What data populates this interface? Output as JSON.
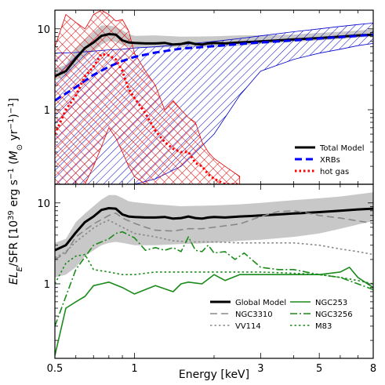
{
  "chart_data": [
    {
      "type": "line",
      "panel": "top",
      "x_scale": "log",
      "y_scale": "log",
      "xlim": [
        0.5,
        8
      ],
      "ylim": [
        0.12,
        17
      ],
      "yticks": [
        {
          "value": 1,
          "label": "1"
        },
        {
          "value": 10,
          "label": "10"
        }
      ],
      "series": [
        {
          "name": "Total Model",
          "style": "solid",
          "color": "#000000",
          "width": 3,
          "x": [
            0.5,
            0.55,
            0.6,
            0.65,
            0.7,
            0.75,
            0.8,
            0.85,
            0.9,
            0.95,
            1.0,
            1.1,
            1.2,
            1.3,
            1.4,
            1.5,
            1.6,
            1.7,
            1.8,
            1.9,
            2.0,
            2.2,
            2.5,
            2.8,
            3.0,
            3.5,
            4.0,
            5.0,
            6.0,
            7.0,
            8.0
          ],
          "y": [
            2.6,
            3.0,
            4.3,
            5.8,
            6.8,
            8.2,
            8.6,
            8.5,
            7.2,
            6.8,
            6.7,
            6.6,
            6.6,
            6.7,
            6.4,
            6.5,
            6.8,
            6.5,
            6.4,
            6.6,
            6.7,
            6.6,
            6.8,
            6.9,
            7.0,
            7.2,
            7.4,
            7.7,
            8.0,
            8.3,
            8.5
          ]
        },
        {
          "name": "XRBs",
          "style": "dashed",
          "color": "#0000ff",
          "width": 3,
          "x": [
            0.5,
            0.6,
            0.7,
            0.8,
            0.9,
            1.0,
            1.2,
            1.5,
            2.0,
            2.5,
            3.0,
            4.0,
            5.0,
            6.0,
            7.0,
            8.0
          ],
          "y": [
            1.3,
            1.9,
            2.7,
            3.4,
            4.0,
            4.5,
            5.1,
            5.7,
            6.1,
            6.5,
            6.8,
            7.2,
            7.6,
            7.9,
            8.2,
            8.5
          ]
        },
        {
          "name": "hot gas",
          "style": "dotted",
          "color": "#ff0000",
          "width": 3,
          "x": [
            0.5,
            0.55,
            0.6,
            0.65,
            0.7,
            0.75,
            0.8,
            0.85,
            0.9,
            0.95,
            1.0,
            1.1,
            1.2,
            1.3,
            1.4,
            1.5,
            1.6,
            1.7,
            1.8,
            1.9,
            2.0,
            2.2,
            2.5
          ],
          "y": [
            0.5,
            1.0,
            1.5,
            2.6,
            3.4,
            4.9,
            4.7,
            4.2,
            3.0,
            1.8,
            1.4,
            0.9,
            0.55,
            0.4,
            0.33,
            0.3,
            0.3,
            0.22,
            0.2,
            0.16,
            0.14,
            0.12,
            0.12
          ]
        }
      ],
      "bands": [
        {
          "name": "Total Model band",
          "color": "#c8c8c8",
          "x": [
            0.5,
            0.55,
            0.6,
            0.65,
            0.7,
            0.75,
            0.8,
            0.85,
            0.9,
            0.95,
            1.0,
            1.2,
            1.5,
            2.0,
            2.5,
            3.0,
            4.0,
            5.0,
            6.0,
            7.0,
            8.0
          ],
          "low": [
            2.3,
            2.6,
            3.6,
            4.6,
            5.3,
            6.4,
            7.1,
            6.9,
            6.3,
            6.0,
            5.9,
            5.9,
            5.9,
            6.0,
            6.2,
            6.5,
            6.9,
            7.2,
            7.5,
            7.8,
            8.0
          ],
          "high": [
            3.2,
            3.6,
            5.8,
            7.4,
            9.1,
            11.0,
            11.0,
            10.6,
            9.6,
            8.6,
            8.2,
            8.3,
            8.0,
            8.1,
            8.3,
            8.3,
            8.5,
            8.9,
            9.2,
            9.5,
            9.9
          ]
        },
        {
          "name": "XRBs band",
          "color": "#0000cc",
          "x": [
            0.5,
            0.6,
            0.7,
            0.8,
            0.9,
            1.0,
            1.2,
            1.5,
            2.0,
            2.5,
            3.0,
            4.0,
            5.0,
            6.0,
            7.0,
            8.0
          ],
          "low": [
            0.12,
            0.12,
            0.12,
            0.12,
            0.12,
            0.12,
            0.14,
            0.2,
            0.5,
            1.5,
            3.0,
            4.2,
            5.0,
            5.6,
            6.2,
            6.6
          ],
          "high": [
            5.0,
            5.1,
            5.3,
            5.5,
            5.6,
            5.8,
            6.0,
            6.4,
            7.0,
            7.6,
            8.2,
            9.2,
            10.0,
            10.7,
            11.3,
            11.8
          ]
        },
        {
          "name": "hot gas band",
          "color": "#e60000",
          "x": [
            0.5,
            0.55,
            0.6,
            0.65,
            0.7,
            0.75,
            0.8,
            0.85,
            0.9,
            0.95,
            1.0,
            1.1,
            1.2,
            1.3,
            1.4,
            1.5,
            1.6,
            1.7,
            1.8,
            1.9,
            2.0,
            2.2,
            2.5
          ],
          "low": [
            0.12,
            0.12,
            0.12,
            0.12,
            0.2,
            0.35,
            0.6,
            0.45,
            0.3,
            0.2,
            0.15,
            0.12,
            0.12,
            0.12,
            0.12,
            0.12,
            0.12,
            0.12,
            0.12,
            0.12,
            0.12,
            0.12,
            0.12
          ],
          "high": [
            6.0,
            15.0,
            12.0,
            10.0,
            15.0,
            17.0,
            15.0,
            12.5,
            13.0,
            9.5,
            5.0,
            3.0,
            2.0,
            1.0,
            1.3,
            1.0,
            0.8,
            0.7,
            0.4,
            0.3,
            0.25,
            0.2,
            0.15
          ]
        }
      ],
      "legend": {
        "placement": "lower-right",
        "entries": [
          "Total Model",
          "XRBs",
          "hot gas"
        ]
      }
    },
    {
      "type": "line",
      "panel": "bottom",
      "x_scale": "log",
      "y_scale": "log",
      "xlim": [
        0.5,
        8
      ],
      "ylim": [
        0.12,
        17
      ],
      "xlabel": "Energy [keV]",
      "xticks": [
        {
          "value": 0.5,
          "label": "0.5"
        },
        {
          "value": 1,
          "label": "1"
        },
        {
          "value": 3,
          "label": "3"
        },
        {
          "value": 5,
          "label": "5"
        },
        {
          "value": 8,
          "label": "8"
        }
      ],
      "yticks": [
        {
          "value": 1,
          "label": "1"
        },
        {
          "value": 10,
          "label": "10"
        }
      ],
      "series": [
        {
          "name": "Global Model",
          "style": "solid",
          "color": "#000000",
          "width": 3,
          "x": [
            0.5,
            0.55,
            0.6,
            0.65,
            0.7,
            0.75,
            0.8,
            0.85,
            0.9,
            0.95,
            1.0,
            1.1,
            1.2,
            1.3,
            1.4,
            1.5,
            1.6,
            1.7,
            1.8,
            1.9,
            2.0,
            2.2,
            2.5,
            2.8,
            3.0,
            3.5,
            4.0,
            5.0,
            6.0,
            7.0,
            8.0
          ],
          "y": [
            2.6,
            3.0,
            4.3,
            5.8,
            6.8,
            8.2,
            8.6,
            8.5,
            7.2,
            6.8,
            6.7,
            6.6,
            6.6,
            6.7,
            6.4,
            6.5,
            6.8,
            6.5,
            6.4,
            6.6,
            6.7,
            6.6,
            6.8,
            6.9,
            7.0,
            7.2,
            7.4,
            7.7,
            8.0,
            8.3,
            8.5
          ]
        },
        {
          "name": "NGC3310",
          "style": "dashed",
          "color": "#888888",
          "width": 1.6,
          "x": [
            0.5,
            0.55,
            0.6,
            0.7,
            0.8,
            0.85,
            0.9,
            1.0,
            1.1,
            1.2,
            1.4,
            1.6,
            1.8,
            2.0,
            2.5,
            3.0,
            3.5,
            4.0,
            4.5,
            5.0,
            6.0,
            7.0,
            8.0
          ],
          "y": [
            2.0,
            2.4,
            3.8,
            5.5,
            7.0,
            7.5,
            6.5,
            5.6,
            5.0,
            4.6,
            4.5,
            4.8,
            4.8,
            5.0,
            5.5,
            6.8,
            7.8,
            8.0,
            7.5,
            7.0,
            6.5,
            6.0,
            5.6
          ]
        },
        {
          "name": "VV114",
          "style": "dotted",
          "color": "#888888",
          "width": 1.6,
          "x": [
            0.5,
            0.55,
            0.6,
            0.7,
            0.75,
            0.8,
            0.9,
            1.0,
            1.2,
            1.4,
            1.6,
            2.0,
            2.5,
            3.0,
            4.0,
            5.0,
            6.0,
            7.0,
            8.0
          ],
          "y": [
            2.1,
            2.5,
            3.3,
            4.9,
            5.6,
            6.1,
            5.0,
            4.2,
            3.8,
            3.4,
            3.3,
            3.3,
            3.2,
            3.2,
            3.2,
            3.0,
            2.7,
            2.5,
            2.3
          ]
        },
        {
          "name": "NGC253",
          "style": "solid",
          "color": "#1a8a1a",
          "width": 1.6,
          "x": [
            0.5,
            0.55,
            0.6,
            0.65,
            0.7,
            0.75,
            0.8,
            0.9,
            1.0,
            1.1,
            1.2,
            1.4,
            1.5,
            1.6,
            1.8,
            2.0,
            2.2,
            2.5,
            3.0,
            4.0,
            5.0,
            6.0,
            6.5,
            7.0,
            8.0
          ],
          "y": [
            0.13,
            0.5,
            0.6,
            0.7,
            0.95,
            1.0,
            1.05,
            0.9,
            0.75,
            0.85,
            0.95,
            0.8,
            1.0,
            1.05,
            1.0,
            1.3,
            1.1,
            1.3,
            1.3,
            1.3,
            1.3,
            1.4,
            1.6,
            1.2,
            0.9
          ]
        },
        {
          "name": "NGC3256",
          "style": "dashdot",
          "color": "#1a8a1a",
          "width": 1.6,
          "x": [
            0.5,
            0.55,
            0.6,
            0.7,
            0.8,
            0.85,
            0.9,
            1.0,
            1.1,
            1.2,
            1.3,
            1.4,
            1.5,
            1.6,
            1.7,
            1.8,
            1.9,
            2.0,
            2.2,
            2.4,
            2.6,
            3.0,
            3.5,
            4.0,
            5.0,
            6.0,
            7.0,
            8.0
          ],
          "y": [
            0.3,
            0.7,
            1.5,
            3.0,
            3.6,
            4.2,
            4.4,
            3.7,
            2.6,
            2.8,
            2.6,
            2.8,
            2.5,
            3.8,
            2.6,
            2.5,
            3.0,
            2.4,
            2.5,
            2.0,
            2.4,
            1.6,
            1.5,
            1.5,
            1.3,
            1.2,
            1.0,
            0.85
          ]
        },
        {
          "name": "M83",
          "style": "dotted",
          "color": "#1a8a1a",
          "width": 1.6,
          "x": [
            0.5,
            0.55,
            0.6,
            0.65,
            0.7,
            0.8,
            0.9,
            1.0,
            1.2,
            1.5,
            2.0,
            2.5,
            3.0,
            4.0,
            5.0,
            6.0,
            7.0,
            8.0
          ],
          "y": [
            1.0,
            1.8,
            2.2,
            2.3,
            1.5,
            1.4,
            1.3,
            1.3,
            1.4,
            1.4,
            1.4,
            1.4,
            1.4,
            1.35,
            1.3,
            1.2,
            1.1,
            1.0
          ]
        }
      ],
      "bands": [
        {
          "name": "Global Model band",
          "color": "#c8c8c8",
          "x": [
            0.5,
            0.55,
            0.6,
            0.65,
            0.7,
            0.75,
            0.8,
            0.85,
            0.9,
            0.95,
            1.0,
            1.2,
            1.5,
            2.0,
            2.5,
            3.0,
            4.0,
            5.0,
            6.0,
            7.0,
            8.0
          ],
          "low": [
            1.2,
            1.3,
            1.6,
            2.2,
            2.6,
            3.0,
            3.2,
            3.3,
            3.2,
            3.1,
            3.0,
            3.0,
            3.1,
            3.2,
            3.4,
            3.5,
            3.8,
            4.2,
            4.8,
            5.4,
            6.0
          ],
          "high": [
            3.2,
            3.6,
            5.8,
            7.4,
            9.1,
            11.0,
            12.5,
            12.5,
            11.5,
            10.5,
            10.2,
            9.6,
            9.1,
            9.3,
            9.6,
            10.0,
            10.8,
            11.4,
            12.0,
            12.8,
            13.5
          ]
        }
      ],
      "legend": {
        "placement": "lower-right",
        "entries": [
          "Global Model",
          "NGC253",
          "NGC3310",
          "NGC3256",
          "VV114",
          "M83"
        ]
      }
    }
  ],
  "figure": {
    "ylabel_parts": [
      "EL",
      "E",
      "/SFR [10",
      "39",
      " erg s",
      "−1",
      " (M",
      "⊙",
      " yr",
      "−1",
      ")",
      "−1",
      "]"
    ]
  }
}
